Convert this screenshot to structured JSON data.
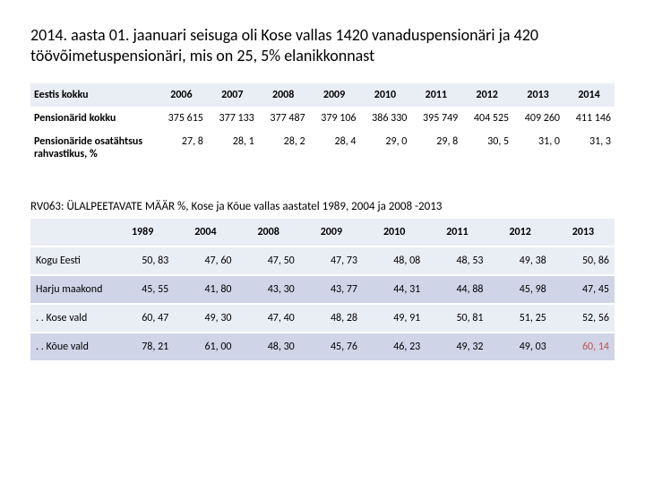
{
  "title": "2014. aasta 01. jaanuari seisuga oli Kose vallas 1420 vanaduspensionäri ja 420 töövõimetuspensionäri, mis on 25, 5% elanikkonnast",
  "table1": {
    "header_label": "Eestis kokku",
    "years": [
      "2006",
      "2007",
      "2008",
      "2009",
      "2010",
      "2011",
      "2012",
      "2013",
      "2014"
    ],
    "rows": [
      {
        "label": "Pensionärid kokku",
        "values": [
          "375 615",
          "377 133",
          "377 487",
          "379 106",
          "386 330",
          "395 749",
          "404 525",
          "409 260",
          "411 146"
        ]
      },
      {
        "label": "Pensionäride osatähtsus rahvastikus, %",
        "values": [
          "27, 8",
          "28, 1",
          "28, 2",
          "28, 4",
          "29, 0",
          "29, 8",
          "30, 5",
          "31, 0",
          "31, 3"
        ]
      }
    ]
  },
  "subtitle": "RV063: ÜLALPEETAVATE MÄÄR %, Kose ja Kõue vallas aastatel 1989, 2004 ja 2008 -2013",
  "table2": {
    "years": [
      "1989",
      "2004",
      "2008",
      "2009",
      "2010",
      "2011",
      "2012",
      "2013"
    ],
    "rows": [
      {
        "label": "Kogu Eesti",
        "values": [
          "50, 83",
          "47, 60",
          "47, 50",
          "47, 73",
          "48, 08",
          "48, 53",
          "49, 38",
          "50, 86"
        ]
      },
      {
        "label": "Harju maakond",
        "values": [
          "45, 55",
          "41, 80",
          "43, 30",
          "43, 77",
          "44, 31",
          "44, 88",
          "45, 98",
          "47, 45"
        ]
      },
      {
        "label": ". . Kose vald",
        "values": [
          "60, 47",
          "49, 30",
          "47, 40",
          "48, 28",
          "49, 91",
          "50, 81",
          "51, 25",
          "52, 56"
        ]
      },
      {
        "label": ". . Kõue vald",
        "values": [
          "78, 21",
          "61, 00",
          "48, 30",
          "45, 76",
          "46, 23",
          "49, 32",
          "49, 03",
          "60, 14"
        ],
        "highlight_last": true
      }
    ]
  },
  "colors": {
    "header_bg": "#e9edf4",
    "alt_bg": "#cfd5e7",
    "highlight": "#c0504d"
  }
}
